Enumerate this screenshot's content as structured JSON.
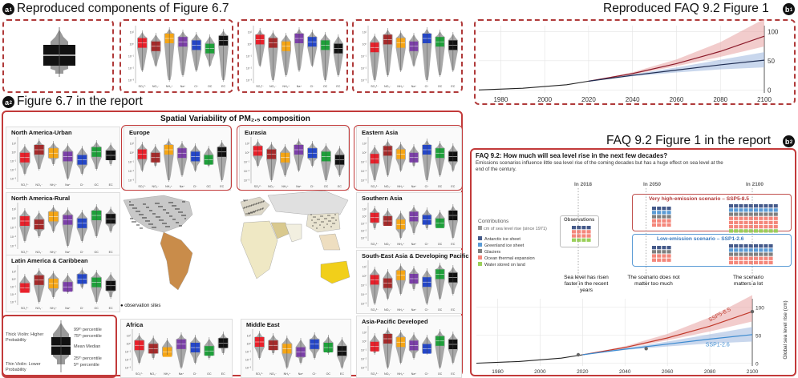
{
  "headings": {
    "a1": "Reproduced components of Figure 6.7",
    "b1": "Reproduced FAQ 9.2 Figure 1",
    "a2": "Figure 6.7 in the report",
    "b2": "FAQ 9.2 Figure 1 in the report"
  },
  "badges": {
    "a": "a",
    "b": "b",
    "n1": "1",
    "n2": "2"
  },
  "colors": {
    "frame": "#b03a3a",
    "so4": "#e8202a",
    "no3": "#a52a2a",
    "nh4": "#f5a515",
    "na": "#7b3fa8",
    "cl": "#2446c8",
    "oc": "#1ea03a",
    "ec": "#111111"
  },
  "violin_axis_labels": [
    "SO₄²⁻",
    "NO₃⁻",
    "NH₄⁺",
    "Na⁺",
    "Cl⁻",
    "OC",
    "EC"
  ],
  "report": {
    "title": "Spatial Variability of PM₂.₅ composition",
    "regions": [
      "North America-Urban",
      "Europe",
      "Eurasia",
      "Eastern Asia",
      "North America-Rural",
      "Southern Asia",
      "Latin America & Caribbean",
      "South-East Asia & Developing Pacific",
      "Africa",
      "Middle East",
      "Asia-Pacific Developed"
    ],
    "ylabel": "Concentration (μg m⁻³)",
    "map_legend": "observation sites",
    "legend": {
      "thick": "Thick Violin: Higher Probability",
      "thin": "Thin Violin: Lower Probability",
      "p99": "99ᵗʰ percentile",
      "p75": "75ᵗʰ percentile",
      "mean": "Mean Median",
      "p25": "25ᵗʰ percentile",
      "p5": "5ᵗʰ percentile"
    }
  },
  "faq": {
    "title": "FAQ 9.2: How much will sea level rise in the next few decades?",
    "subtitle": "Emissions scenarios influence little sea level rise of the coming decades but has a huge effect on sea level at the end of the century.",
    "years": [
      "In 2018",
      "In 2050",
      "In 2100"
    ],
    "contrib_title": "Contributions",
    "contrib_unit": "cm of sea level rise (since 1971)",
    "contrib": [
      "Antarctic ice sheet",
      "Greenland ice sheet",
      "Glaciers",
      "Ocean thermal expansion",
      "Water stored on land"
    ],
    "obs": "Observations",
    "high": "Very high-emission scenario – SSP5-8.5",
    "low": "Low-emission scenario – SSP1-2.6",
    "notes": [
      "Sea level has risen faster in the recent years",
      "The scenario does not matter too much",
      "The scenario matters a lot"
    ],
    "ylabel": "Global sea level rise (cm)",
    "ssp585": "SSP5-8.5",
    "ssp126": "SSP1-2.6"
  },
  "chart_data": [
    {
      "type": "line",
      "title": "",
      "x_ticks": [
        1980,
        2000,
        2020,
        2040,
        2060,
        2080,
        2100
      ],
      "y_ticks": [
        0,
        50,
        100
      ],
      "xlim": [
        1970,
        2100
      ],
      "ylim": [
        -5,
        110
      ],
      "series": [
        {
          "values_x": [
            1970,
            1990,
            2010,
            2020,
            2040,
            2060,
            2080,
            2100
          ],
          "values_y": [
            0,
            3,
            9,
            15,
            28,
            45,
            66,
            92
          ]
        },
        {
          "values_x": [
            2020,
            2040,
            2060,
            2080,
            2100
          ],
          "values_y": [
            15,
            25,
            34,
            43,
            51
          ]
        }
      ]
    },
    {
      "type": "line",
      "title": "",
      "x_ticks": [
        1980,
        2000,
        2020,
        2040,
        2060,
        2080,
        2100
      ],
      "y_ticks": [
        0,
        50,
        100
      ],
      "xlim": [
        1970,
        2100
      ],
      "ylim": [
        -5,
        115
      ],
      "series": [
        {
          "name": "SSP5-8.5",
          "values_x": [
            1970,
            1990,
            2010,
            2020,
            2040,
            2060,
            2080,
            2100
          ],
          "values_y": [
            0,
            3,
            9,
            15,
            28,
            45,
            66,
            92
          ]
        },
        {
          "name": "SSP1-2.6",
          "values_x": [
            2020,
            2040,
            2060,
            2080,
            2100
          ],
          "values_y": [
            15,
            25,
            34,
            43,
            51
          ]
        }
      ]
    }
  ]
}
